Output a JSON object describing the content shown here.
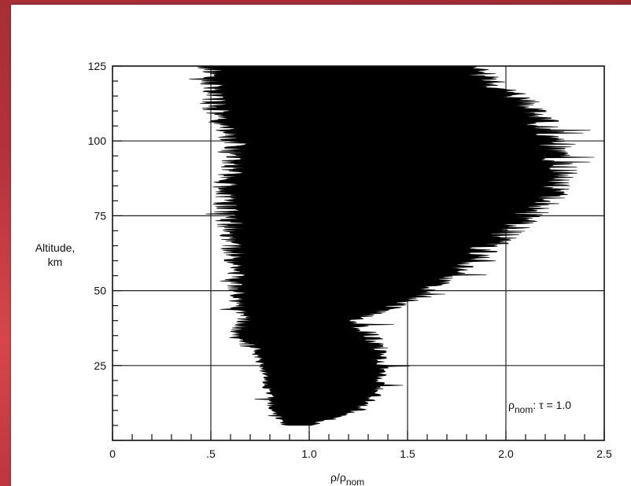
{
  "chart_data": {
    "type": "area",
    "xlabel_main": "ρ/ρ",
    "xlabel_sub": "nom",
    "ylabel_line1": "Altitude,",
    "ylabel_line2": "km",
    "annotation_main": "ρ",
    "annotation_sub": "nom",
    "annotation_rest": ": τ = 1.0",
    "xlim": [
      0,
      2.5
    ],
    "ylim": [
      0,
      125
    ],
    "xticks": [
      {
        "value": 0,
        "label": "0"
      },
      {
        "value": 0.5,
        "label": ".5"
      },
      {
        "value": 1.0,
        "label": "1.0"
      },
      {
        "value": 1.5,
        "label": "1.5"
      },
      {
        "value": 2.0,
        "label": "2.0"
      },
      {
        "value": 2.5,
        "label": "2.5"
      }
    ],
    "yticks": [
      {
        "value": 25,
        "label": "25"
      },
      {
        "value": 50,
        "label": "50"
      },
      {
        "value": 75,
        "label": "75"
      },
      {
        "value": 100,
        "label": "100"
      },
      {
        "value": 125,
        "label": "125"
      }
    ],
    "grid": true,
    "colors": {
      "fill": "#000000",
      "grid": "#222222",
      "frame": "#b8343a"
    },
    "envelope": {
      "altitude": [
        5,
        10,
        15,
        20,
        25,
        30,
        35,
        40,
        45,
        50,
        55,
        60,
        65,
        70,
        75,
        80,
        85,
        90,
        95,
        100,
        105,
        110,
        115,
        120,
        125
      ],
      "min": [
        0.88,
        0.82,
        0.8,
        0.78,
        0.76,
        0.72,
        0.62,
        0.68,
        0.63,
        0.63,
        0.63,
        0.62,
        0.61,
        0.6,
        0.58,
        0.58,
        0.58,
        0.6,
        0.62,
        0.62,
        0.56,
        0.53,
        0.5,
        0.5,
        0.5
      ],
      "max": [
        1.0,
        1.25,
        1.33,
        1.36,
        1.37,
        1.36,
        1.32,
        1.2,
        1.45,
        1.6,
        1.72,
        1.82,
        1.92,
        2.02,
        2.12,
        2.2,
        2.26,
        2.28,
        2.26,
        2.24,
        2.2,
        2.14,
        2.04,
        1.9,
        1.8
      ]
    }
  }
}
